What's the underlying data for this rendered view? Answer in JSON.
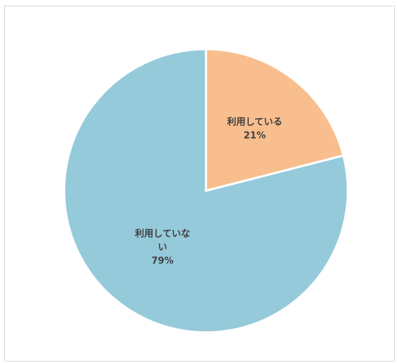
{
  "chart_data": {
    "type": "pie",
    "categories": [
      "利用している",
      "利用していない"
    ],
    "values": [
      21,
      79
    ],
    "unit": "%",
    "colors": [
      "#F8BE8E",
      "#95CADB"
    ],
    "labels": [
      {
        "lines": [
          "利用している",
          "21%"
        ]
      },
      {
        "lines": [
          "利用していな",
          "い",
          "79%"
        ]
      }
    ],
    "start_angle": "12 o'clock",
    "direction": "clockwise",
    "title": "",
    "legend": "none"
  }
}
